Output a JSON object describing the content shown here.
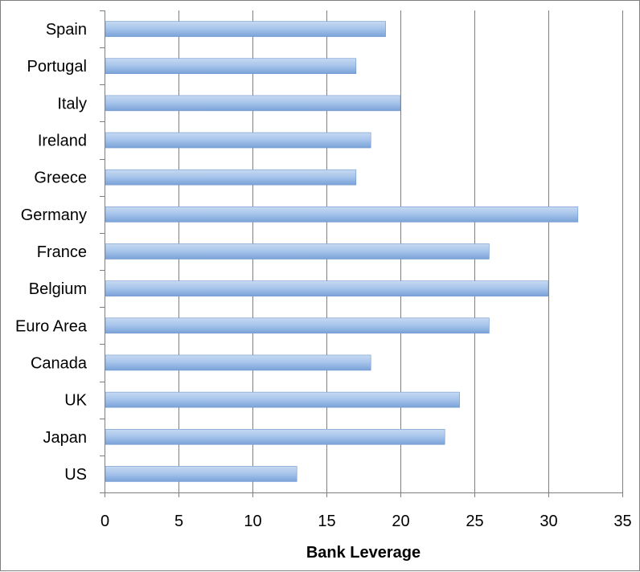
{
  "chart_data": {
    "type": "bar",
    "orientation": "horizontal",
    "categories": [
      "Spain",
      "Portugal",
      "Italy",
      "Ireland",
      "Greece",
      "Germany",
      "France",
      "Belgium",
      "Euro Area",
      "Canada",
      "UK",
      "Japan",
      "US"
    ],
    "values": [
      19,
      17,
      20,
      18,
      17,
      32,
      26,
      30,
      26,
      18,
      24,
      23,
      13
    ],
    "title": "",
    "xlabel": "Bank Leverage",
    "ylabel": "",
    "xlim": [
      0,
      35
    ],
    "xticks": [
      0,
      5,
      10,
      15,
      20,
      25,
      30,
      35
    ],
    "grid": "vertical",
    "legend": "none",
    "colors": {
      "bar": "#8db3e2",
      "bar_highlight": "#c6d9f1",
      "bar_edge": "#6f97cf",
      "grid": "#7f7f7f"
    }
  }
}
